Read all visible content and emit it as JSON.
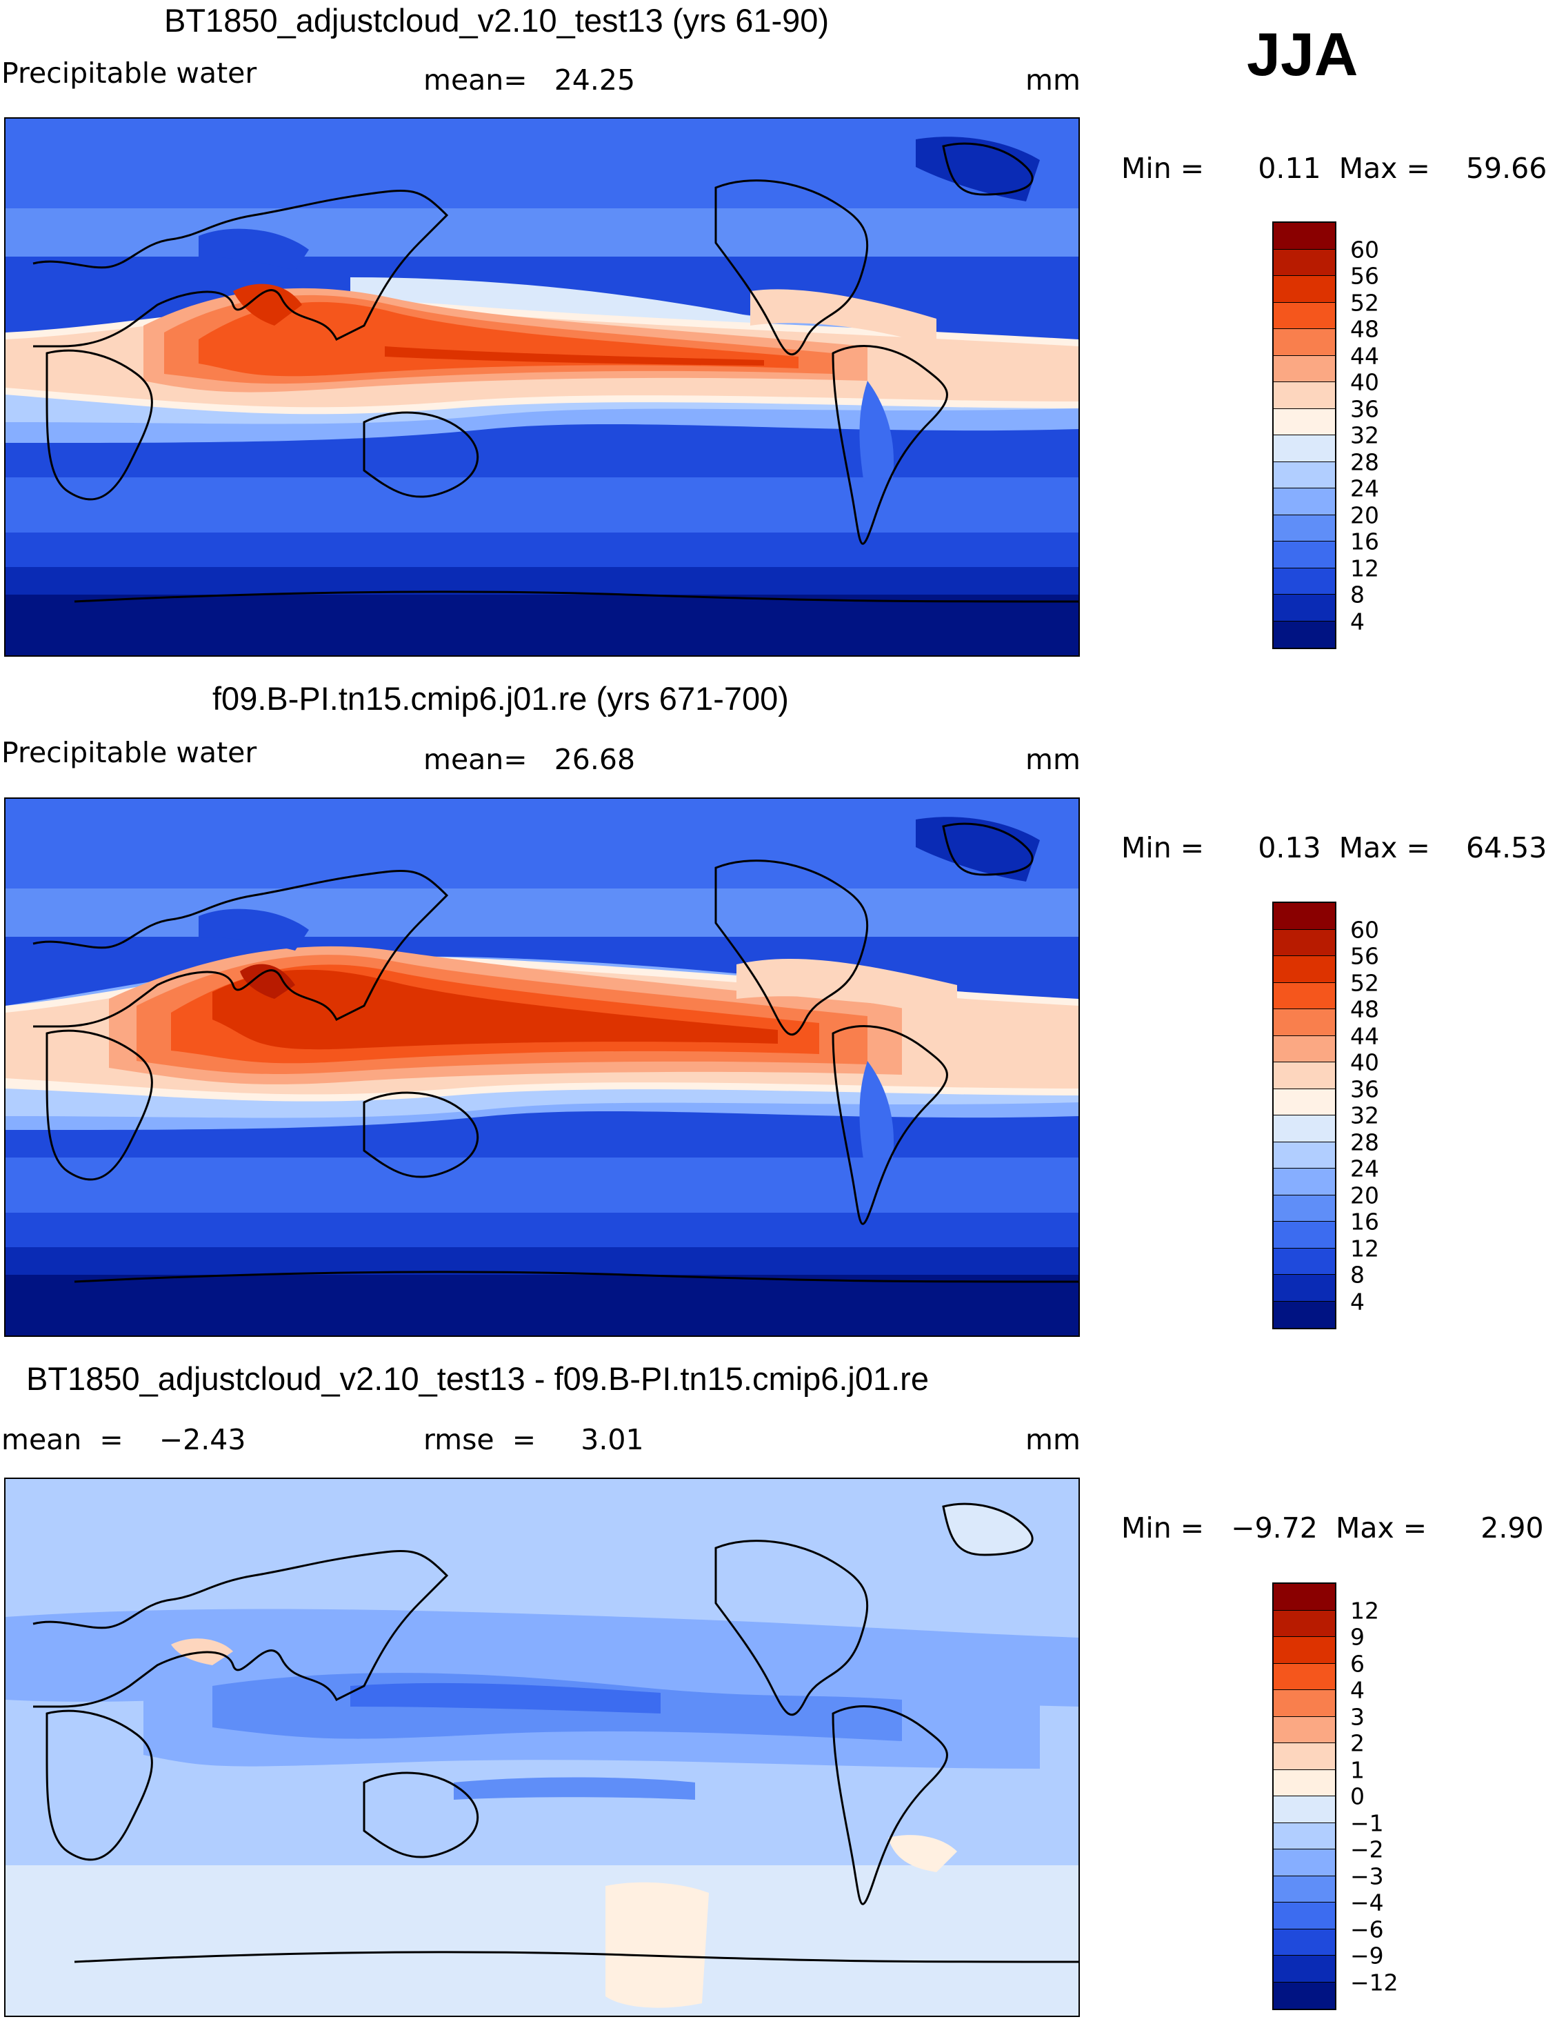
{
  "season": "JJA",
  "panels": [
    {
      "title": "BT1850_adjustcloud_v2.10_test13 (yrs 61-90)",
      "left_label": "Precipitable water",
      "center_label": "mean=   24.25",
      "units": "mm",
      "stats": "Min =      0.11  Max =    59.66"
    },
    {
      "title": "f09.B-PI.tn15.cmip6.j01.re (yrs 671-700)",
      "left_label": "Precipitable water",
      "center_label": "mean=   26.68",
      "units": "mm",
      "stats": "Min =      0.13  Max =    64.53"
    },
    {
      "title": "BT1850_adjustcloud_v2.10_test13 - f09.B-PI.tn15.cmip6.j01.re",
      "left_label": "mean  =    −2.43",
      "center_label": "rmse  =     3.01",
      "units": "mm",
      "stats": "Min =   −9.72  Max =      2.90"
    }
  ],
  "colorbar_abs": {
    "colors": [
      "#8a0000",
      "#b81b00",
      "#dd3300",
      "#f5561c",
      "#f97f4d",
      "#fba883",
      "#fdd6be",
      "#fff2e6",
      "#dbe9fb",
      "#b1ceff",
      "#86aeff",
      "#5f8ef8",
      "#3c6cf0",
      "#1f4adc",
      "#0a2bb5",
      "#001383"
    ],
    "ticks": [
      "60",
      "56",
      "52",
      "48",
      "44",
      "40",
      "36",
      "32",
      "28",
      "24",
      "20",
      "16",
      "12",
      "8",
      "4"
    ]
  },
  "colorbar_diff": {
    "colors": [
      "#8a0000",
      "#b81b00",
      "#dd3300",
      "#f5561c",
      "#f97f4d",
      "#fba883",
      "#fdd6be",
      "#fff0e1",
      "#dbe9fb",
      "#b1ceff",
      "#86aeff",
      "#5f8ef8",
      "#3c6cf0",
      "#1f4adc",
      "#0a2bb5",
      "#001383"
    ],
    "ticks": [
      "12",
      "9",
      "6",
      "4",
      "3",
      "2",
      "1",
      "0",
      "−1",
      "−2",
      "−3",
      "−4",
      "−6",
      "−9",
      "−12"
    ]
  }
}
